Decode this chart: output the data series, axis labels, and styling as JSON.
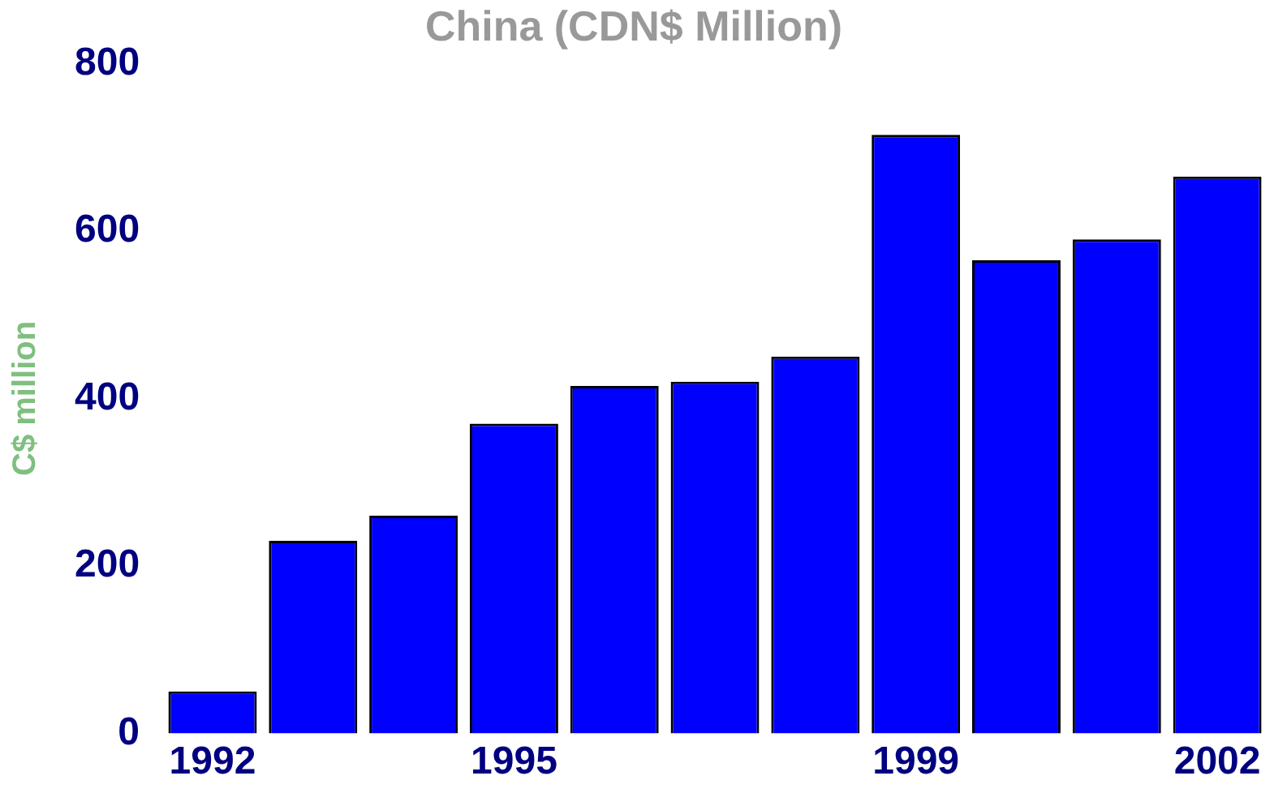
{
  "chart_data": {
    "type": "bar",
    "title": "China (CDN$ Million)",
    "ylabel": "C$ million",
    "categories": [
      "1992",
      null,
      null,
      "1995",
      null,
      null,
      null,
      "1999",
      null,
      null,
      "2002"
    ],
    "values": [
      50,
      230,
      260,
      370,
      415,
      420,
      450,
      715,
      565,
      590,
      665
    ],
    "color": "#0000ff",
    "ylim": [
      0,
      800
    ],
    "yticks": [
      0,
      200,
      400,
      600,
      800
    ],
    "grid": false,
    "legend": false
  }
}
